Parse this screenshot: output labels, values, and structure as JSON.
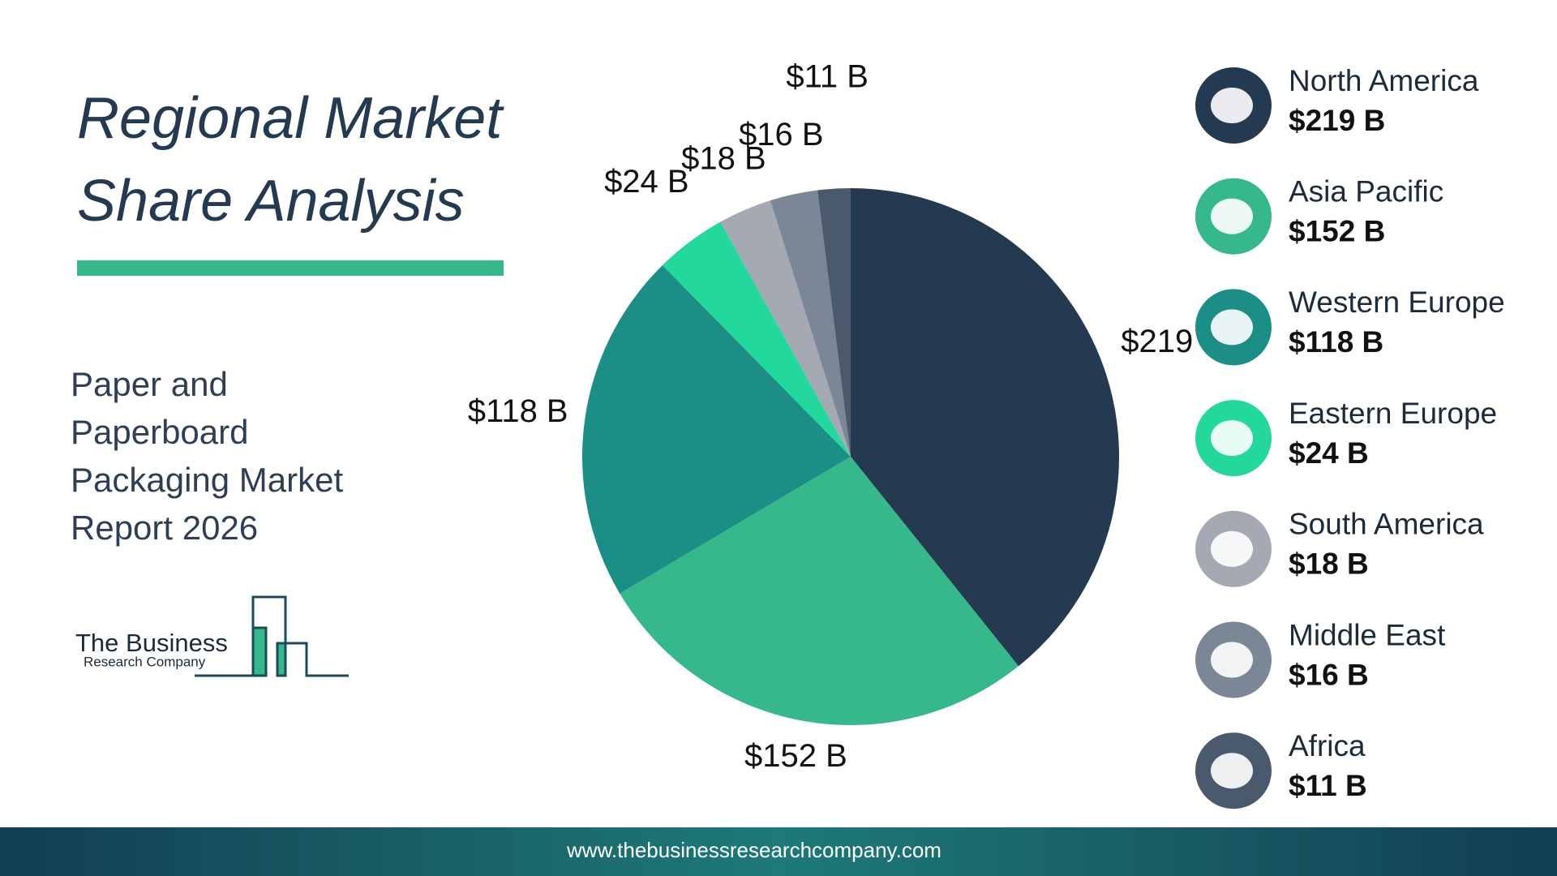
{
  "header": {
    "title_lines": [
      "Regional Market",
      "Share Analysis"
    ],
    "subtitle": "Paper and Paperboard Packaging Market Report 2026"
  },
  "logo": {
    "name": "The Business",
    "tagline": "Research Company"
  },
  "chart_data": {
    "type": "pie",
    "categories": [
      "North America",
      "Asia Pacific",
      "Western Europe",
      "Eastern Europe",
      "South America",
      "Middle East",
      "Africa"
    ],
    "values": [
      219,
      152,
      118,
      24,
      18,
      16,
      11
    ],
    "value_labels": [
      "$219 B",
      "$152 B",
      "$118 B",
      "$24 B",
      "$18 B",
      "$16 B",
      "$11 B"
    ],
    "colors": [
      "#243a51",
      "#35b88a",
      "#1b8f86",
      "#22d89d",
      "#a5a9b4",
      "#7b8796",
      "#4a5a6c"
    ]
  },
  "footer": {
    "url": "www.thebusinessresearchcompany.com"
  }
}
